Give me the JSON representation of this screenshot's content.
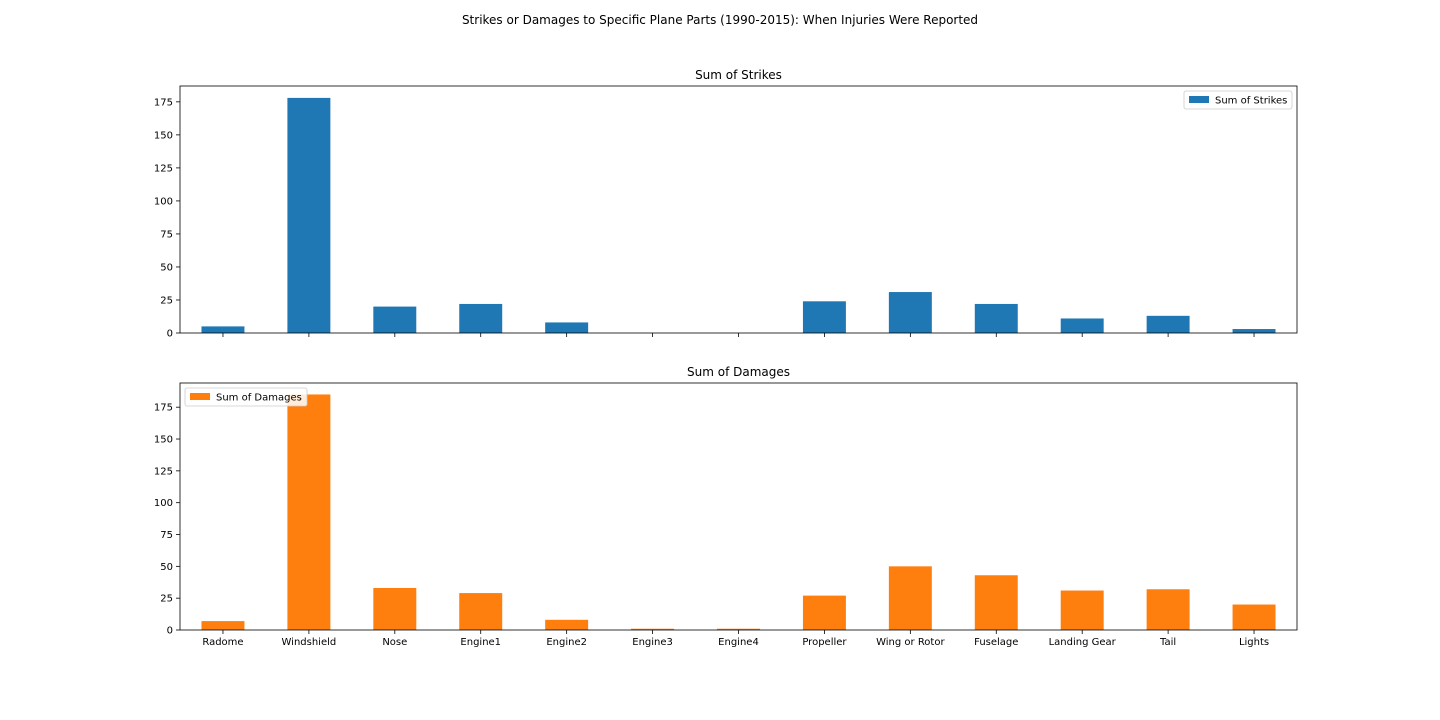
{
  "figure": {
    "suptitle": "Strikes or Damages to Specific Plane Parts (1990-2015): When Injuries Were Reported"
  },
  "chart_data": [
    {
      "type": "bar",
      "title": "Sum of Strikes",
      "categories": [
        "Radome",
        "Windshield",
        "Nose",
        "Engine1",
        "Engine2",
        "Engine3",
        "Engine4",
        "Propeller",
        "Wing or Rotor",
        "Fuselage",
        "Landing Gear",
        "Tail",
        "Lights"
      ],
      "series": [
        {
          "name": "Sum of Strikes",
          "values": [
            5,
            178,
            20,
            22,
            8,
            0,
            0,
            24,
            31,
            22,
            11,
            13,
            3
          ],
          "color": "#1f77b4"
        }
      ],
      "ylim": [
        0,
        187
      ],
      "yticks": [
        0,
        25,
        50,
        75,
        100,
        125,
        150,
        175
      ],
      "show_xticklabels": false,
      "legend": "top-right"
    },
    {
      "type": "bar",
      "title": "Sum of Damages",
      "categories": [
        "Radome",
        "Windshield",
        "Nose",
        "Engine1",
        "Engine2",
        "Engine3",
        "Engine4",
        "Propeller",
        "Wing or Rotor",
        "Fuselage",
        "Landing Gear",
        "Tail",
        "Lights"
      ],
      "series": [
        {
          "name": "Sum of Damages",
          "values": [
            7,
            185,
            33,
            29,
            8,
            1,
            1,
            27,
            50,
            43,
            31,
            32,
            20
          ],
          "color": "#ff7f0e"
        }
      ],
      "ylim": [
        0,
        194
      ],
      "yticks": [
        0,
        25,
        50,
        75,
        100,
        125,
        150,
        175
      ],
      "show_xticklabels": true,
      "legend": "top-left"
    }
  ]
}
